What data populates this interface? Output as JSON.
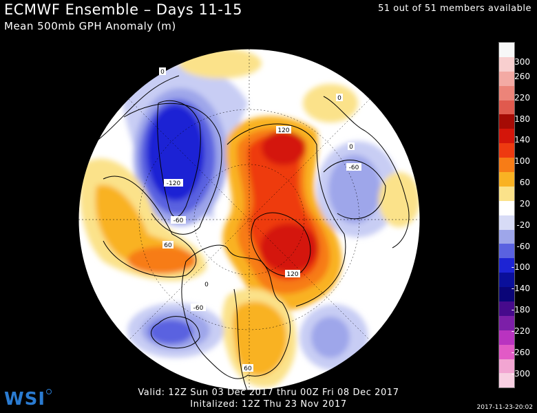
{
  "header": {
    "title": "ECMWF Ensemble – Days 11-15",
    "subtitle": "Mean 500mb GPH Anomaly (m)",
    "members": "51 out of 51 members available"
  },
  "footer": {
    "valid": "Valid: 12Z Sun 03 Dec 2017 thru 00Z Fri 08 Dec 2017",
    "initialized": "Initalized: 12Z Thu 23 Nov 2017",
    "logo": "WSI",
    "timestamp": "2017-11-23-20:02"
  },
  "legend": {
    "colors": [
      "#f7f7f7",
      "#f8cfcf",
      "#f3aaa4",
      "#ec8479",
      "#e05a4e",
      "#a50b05",
      "#d4150a",
      "#ee3a10",
      "#f77c16",
      "#f9b223",
      "#fbe28a",
      "#ffffff",
      "#d7dbf6",
      "#9ea6ea",
      "#5a62e0",
      "#1d24d4",
      "#0a0f9a",
      "#0a0578",
      "#460a8c",
      "#7c1fa8",
      "#b933c0",
      "#e25ac6",
      "#f2a5d2",
      "#f8cfe2"
    ],
    "labels": [
      "300",
      "260",
      "220",
      "180",
      "140",
      "100",
      "60",
      "20",
      "-20",
      "-60",
      "-100",
      "-140",
      "-180",
      "-220",
      "-260",
      "-300"
    ]
  },
  "contour_labels": [
    {
      "text": "120"
    },
    {
      "text": "-120"
    },
    {
      "text": "-60"
    },
    {
      "text": "60"
    },
    {
      "text": "0"
    },
    {
      "text": "-60"
    },
    {
      "text": "120"
    },
    {
      "text": "-60"
    },
    {
      "text": "60"
    },
    {
      "text": "0"
    },
    {
      "text": "0"
    },
    {
      "text": "0"
    }
  ]
}
